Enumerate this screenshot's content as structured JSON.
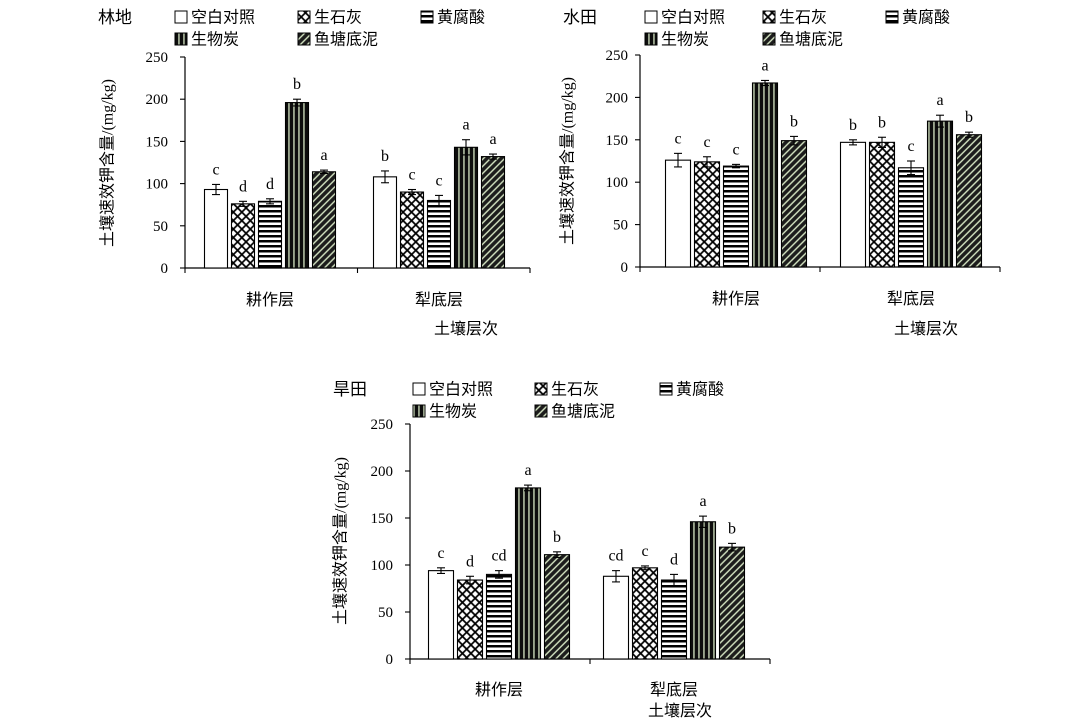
{
  "chart_data": [
    {
      "type": "bar",
      "title": "林地",
      "categories": [
        "耕作层",
        "犁底层"
      ],
      "xlabel": "土壤层次",
      "ylabel": "土壤速效钾含量/(mg/kg)",
      "ylim": [
        0,
        250
      ],
      "yticks": [
        0,
        50,
        100,
        150,
        200,
        250
      ],
      "grid": false,
      "legend": "top",
      "series": [
        {
          "name": "空白对照",
          "values": [
            93,
            108
          ],
          "errors": [
            6,
            7
          ],
          "labels": [
            "c",
            "b"
          ]
        },
        {
          "name": "生石灰",
          "values": [
            76,
            90
          ],
          "errors": [
            3,
            3
          ],
          "labels": [
            "d",
            "c"
          ]
        },
        {
          "name": "黄腐酸",
          "values": [
            79,
            80
          ],
          "errors": [
            3,
            6
          ],
          "labels": [
            "d",
            "c"
          ]
        },
        {
          "name": "生物炭",
          "values": [
            196,
            143
          ],
          "errors": [
            4,
            9
          ],
          "labels": [
            "b",
            "a"
          ]
        },
        {
          "name": "鱼塘底泥",
          "values": [
            114,
            132
          ],
          "errors": [
            2,
            3
          ],
          "labels": [
            "a",
            "a"
          ]
        }
      ]
    },
    {
      "type": "bar",
      "title": "水田",
      "categories": [
        "耕作层",
        "犁底层"
      ],
      "xlabel": "土壤层次",
      "ylabel": "土壤速效钾含量/(mg/kg)",
      "ylim": [
        0,
        250
      ],
      "yticks": [
        0,
        50,
        100,
        150,
        200,
        250
      ],
      "grid": false,
      "legend": "top",
      "series": [
        {
          "name": "空白对照",
          "values": [
            126,
            147
          ],
          "errors": [
            8,
            3
          ],
          "labels": [
            "c",
            "b"
          ]
        },
        {
          "name": "生石灰",
          "values": [
            124,
            147
          ],
          "errors": [
            6,
            6
          ],
          "labels": [
            "c",
            "b"
          ]
        },
        {
          "name": "黄腐酸",
          "values": [
            119,
            117
          ],
          "errors": [
            2,
            8
          ],
          "labels": [
            "c",
            "c"
          ]
        },
        {
          "name": "生物炭",
          "values": [
            217,
            172
          ],
          "errors": [
            3,
            7
          ],
          "labels": [
            "a",
            "a"
          ]
        },
        {
          "name": "鱼塘底泥",
          "values": [
            149,
            156
          ],
          "errors": [
            5,
            3
          ],
          "labels": [
            "b",
            "b"
          ]
        }
      ]
    },
    {
      "type": "bar",
      "title": "旱田",
      "categories": [
        "耕作层",
        "犁底层"
      ],
      "xlabel": "土壤层次",
      "ylabel": "土壤速效钾含量/(mg/kg)",
      "ylim": [
        0,
        250
      ],
      "yticks": [
        0,
        50,
        100,
        150,
        200,
        250
      ],
      "grid": false,
      "legend": "top",
      "series": [
        {
          "name": "空白对照",
          "values": [
            94,
            88
          ],
          "errors": [
            3,
            6
          ],
          "labels": [
            "c",
            "cd"
          ]
        },
        {
          "name": "生石灰",
          "values": [
            84,
            97
          ],
          "errors": [
            4,
            2
          ],
          "labels": [
            "d",
            "c"
          ]
        },
        {
          "name": "黄腐酸",
          "values": [
            90,
            84
          ],
          "errors": [
            4,
            6
          ],
          "labels": [
            "cd",
            "d"
          ]
        },
        {
          "name": "生物炭",
          "values": [
            182,
            146
          ],
          "errors": [
            3,
            6
          ],
          "labels": [
            "a",
            "a"
          ]
        },
        {
          "name": "鱼塘底泥",
          "values": [
            111,
            119
          ],
          "errors": [
            3,
            4
          ],
          "labels": [
            "b",
            "b"
          ]
        }
      ]
    }
  ]
}
